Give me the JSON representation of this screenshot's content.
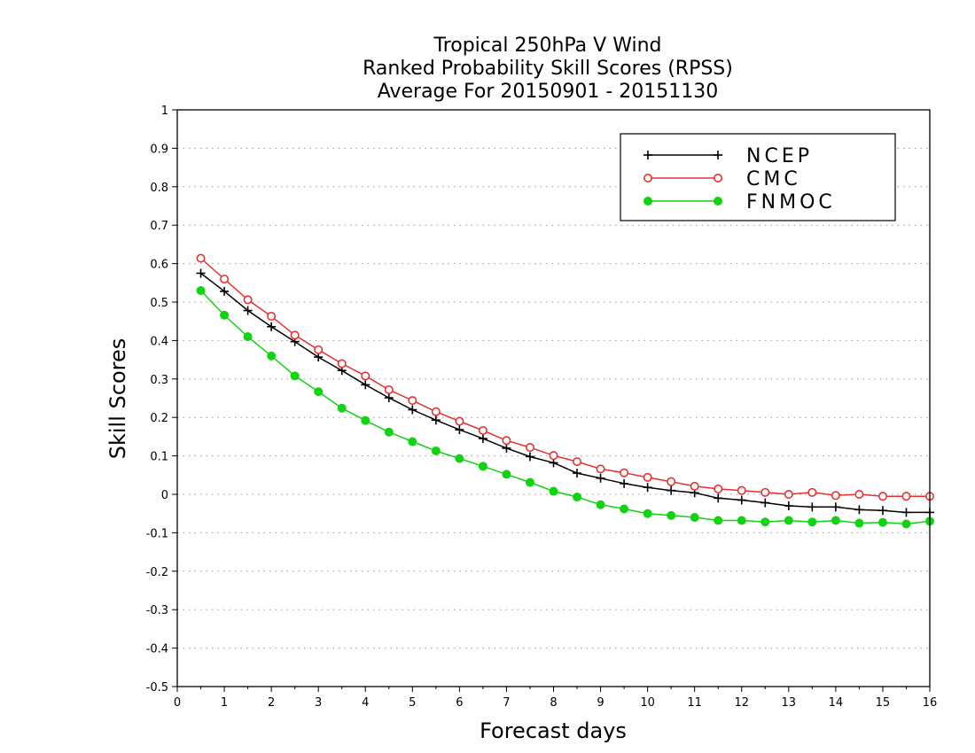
{
  "chart_data": {
    "type": "line",
    "title": [
      "Tropical 250hPa V Wind",
      "Ranked Probability Skill Scores (RPSS)",
      "Average For 20150901 - 20151130"
    ],
    "xlabel": "Forecast days",
    "ylabel": "Skill Scores",
    "xlim": [
      0,
      16
    ],
    "ylim": [
      -0.5,
      1
    ],
    "xticks": [
      0,
      1,
      2,
      3,
      4,
      5,
      6,
      7,
      8,
      9,
      10,
      11,
      12,
      13,
      14,
      15,
      16
    ],
    "yticks": [
      -0.5,
      -0.4,
      -0.3,
      -0.2,
      -0.1,
      0,
      0.1,
      0.2,
      0.3,
      0.4,
      0.5,
      0.6,
      0.7,
      0.8,
      0.9,
      1
    ],
    "ytick_labels": [
      "-0.5",
      "-0.4",
      "-0.3",
      "-0.2",
      "-0.1",
      "0",
      "0.1",
      "0.2",
      "0.3",
      "0.4",
      "0.5",
      "0.6",
      "0.7",
      "0.8",
      "0.9",
      "1"
    ],
    "grid": "horizontal-dotted",
    "legend_position": "top-right",
    "x": [
      0.5,
      1,
      1.5,
      2,
      2.5,
      3,
      3.5,
      4,
      4.5,
      5,
      5.5,
      6,
      6.5,
      7,
      7.5,
      8,
      8.5,
      9,
      9.5,
      10,
      10.5,
      11,
      11.5,
      12,
      12.5,
      13,
      13.5,
      14,
      14.5,
      15,
      15.5,
      16
    ],
    "series": [
      {
        "name": "NCEP",
        "color": "#000000",
        "marker": "plus",
        "values": [
          0.575,
          0.528,
          0.478,
          0.436,
          0.397,
          0.357,
          0.322,
          0.285,
          0.251,
          0.22,
          0.193,
          0.168,
          0.145,
          0.12,
          0.098,
          0.082,
          0.055,
          0.042,
          0.028,
          0.018,
          0.01,
          0.004,
          -0.01,
          -0.015,
          -0.022,
          -0.03,
          -0.033,
          -0.033,
          -0.04,
          -0.042,
          -0.047,
          -0.047
        ]
      },
      {
        "name": "CMC",
        "color": "#e83030",
        "marker": "open-circle",
        "values": [
          0.614,
          0.56,
          0.506,
          0.463,
          0.414,
          0.376,
          0.34,
          0.308,
          0.272,
          0.244,
          0.215,
          0.19,
          0.166,
          0.14,
          0.122,
          0.101,
          0.085,
          0.066,
          0.056,
          0.044,
          0.033,
          0.021,
          0.014,
          0.01,
          0.005,
          0.0,
          0.005,
          -0.003,
          0.0,
          -0.005,
          -0.005,
          -0.005
        ]
      },
      {
        "name": "FNMOC",
        "color": "#12d312",
        "marker": "filled-circle",
        "values": [
          0.53,
          0.466,
          0.41,
          0.36,
          0.308,
          0.267,
          0.224,
          0.192,
          0.162,
          0.137,
          0.113,
          0.093,
          0.073,
          0.052,
          0.031,
          0.008,
          -0.007,
          -0.027,
          -0.038,
          -0.05,
          -0.055,
          -0.06,
          -0.068,
          -0.068,
          -0.072,
          -0.068,
          -0.072,
          -0.068,
          -0.075,
          -0.073,
          -0.077,
          -0.07
        ]
      }
    ]
  }
}
